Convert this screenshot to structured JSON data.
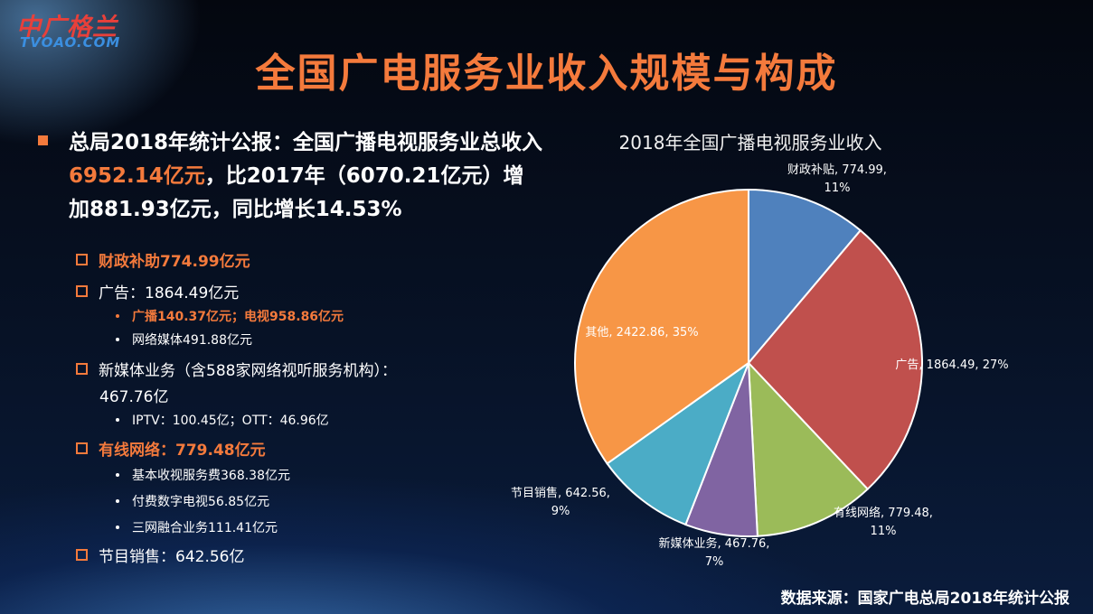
{
  "logo": {
    "cn": "中广格兰",
    "en": "TVOAO.COM"
  },
  "title": "全国广电服务业收入规模与构成",
  "lead": {
    "p1": "总局2018年统计公报：全国广播电视服务业总收入",
    "highlight": "6952.14亿元",
    "p2": "，比2017年（6070.21亿元）增加881.93亿元，同比增长14.53%"
  },
  "list": {
    "i1": "财政补助774.99亿元",
    "i2": "广告：1864.49亿元",
    "i2s1": "广播140.37亿元；电视958.86亿元",
    "i2s2": "网络媒体491.88亿元",
    "i3a": "新媒体业务（含588家网络视听服务机构）：",
    "i3b": "467.76亿",
    "i3s1": "IPTV：100.45亿；OTT：46.96亿",
    "i4": "有线网络：779.48亿元",
    "i4s1": "基本收视服务费368.38亿元",
    "i4s2": "付费数字电视56.85亿元",
    "i4s3": "三网融合业务111.41亿元",
    "i5": "节目销售：642.56亿"
  },
  "chart_data": {
    "type": "pie",
    "title": "2018年全国广播电视服务业收入",
    "slices": [
      {
        "label": "财政补贴",
        "value": 774.99,
        "percent": "11%",
        "color": "#4f81bd"
      },
      {
        "label": "广告",
        "value": 1864.49,
        "percent": "27%",
        "color": "#c0504d"
      },
      {
        "label": "有线网络",
        "value": 779.48,
        "percent": "11%",
        "color": "#9bbb59"
      },
      {
        "label": "新媒体业务",
        "value": 467.76,
        "percent": "7%",
        "color": "#8064a2"
      },
      {
        "label": "节目销售",
        "value": 642.56,
        "percent": "9%",
        "color": "#4bacc6"
      },
      {
        "label": "其他",
        "value": 2422.86,
        "percent": "35%",
        "color": "#f79646"
      }
    ]
  },
  "source": "数据来源：国家广电总局2018年统计公报"
}
